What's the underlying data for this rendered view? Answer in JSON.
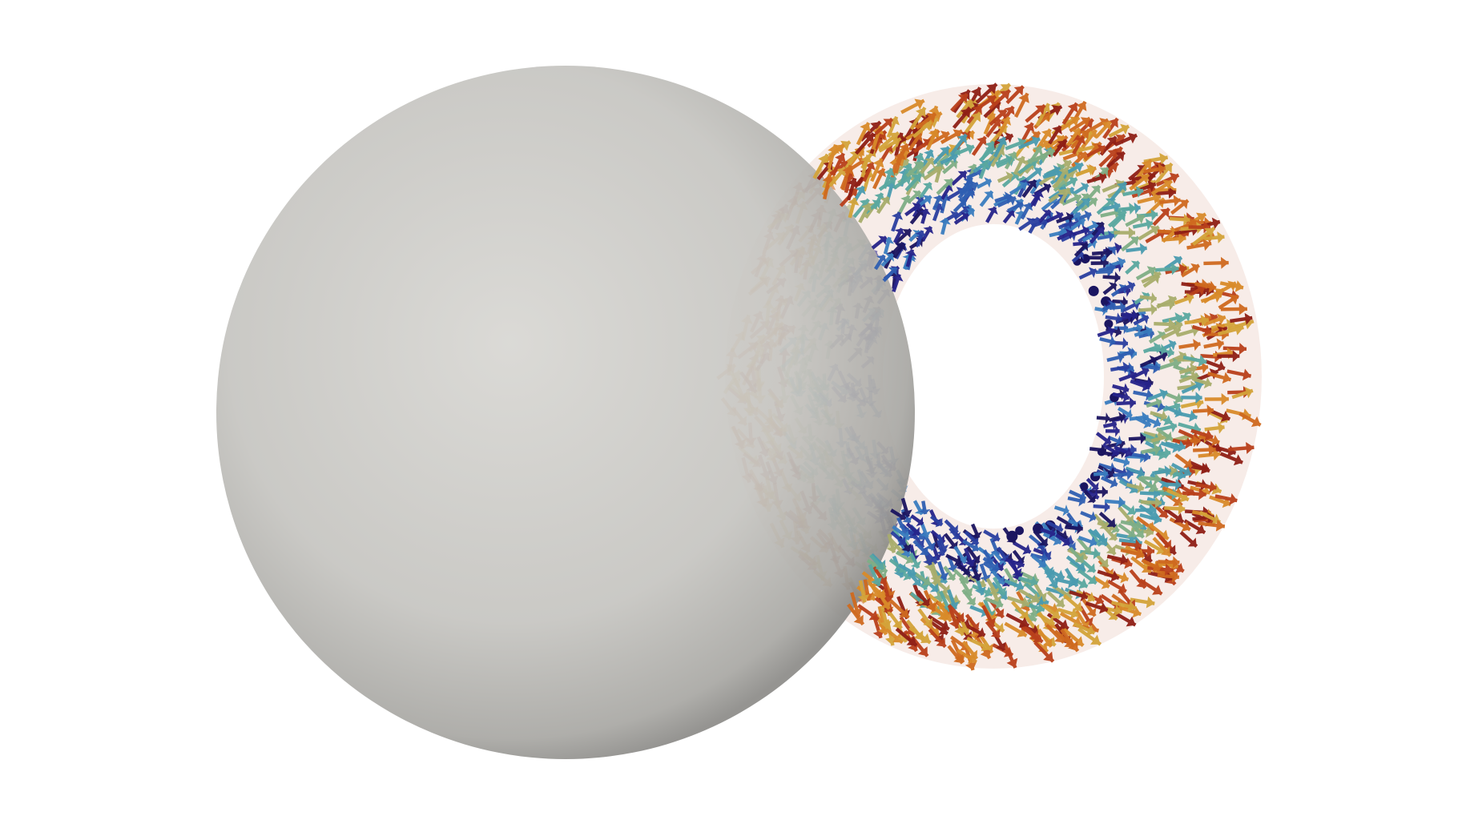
{
  "scene": {
    "background": "#ffffff",
    "sphere": {
      "highlight": "#d8d7d3",
      "mid": "#c6c5c1",
      "shadow": "#9c9b97",
      "edge": "#8d8c89"
    },
    "torus": {
      "membrane_color": "#e7c9bd",
      "inner_arrow_colors": [
        "#1b1560",
        "#26238a",
        "#2a3fa0",
        "#2f5fb2",
        "#3a7dbf"
      ],
      "middle_arrow_colors": [
        "#4a9bb0",
        "#5aa8a0",
        "#7fae86",
        "#a8ad6c"
      ],
      "outer_arrow_colors": [
        "#d4a43a",
        "#d98b2a",
        "#cf6a1f",
        "#b9401b",
        "#8f1f16"
      ]
    },
    "icon_names": [
      "arrow-glyph",
      "point-glyph"
    ]
  }
}
